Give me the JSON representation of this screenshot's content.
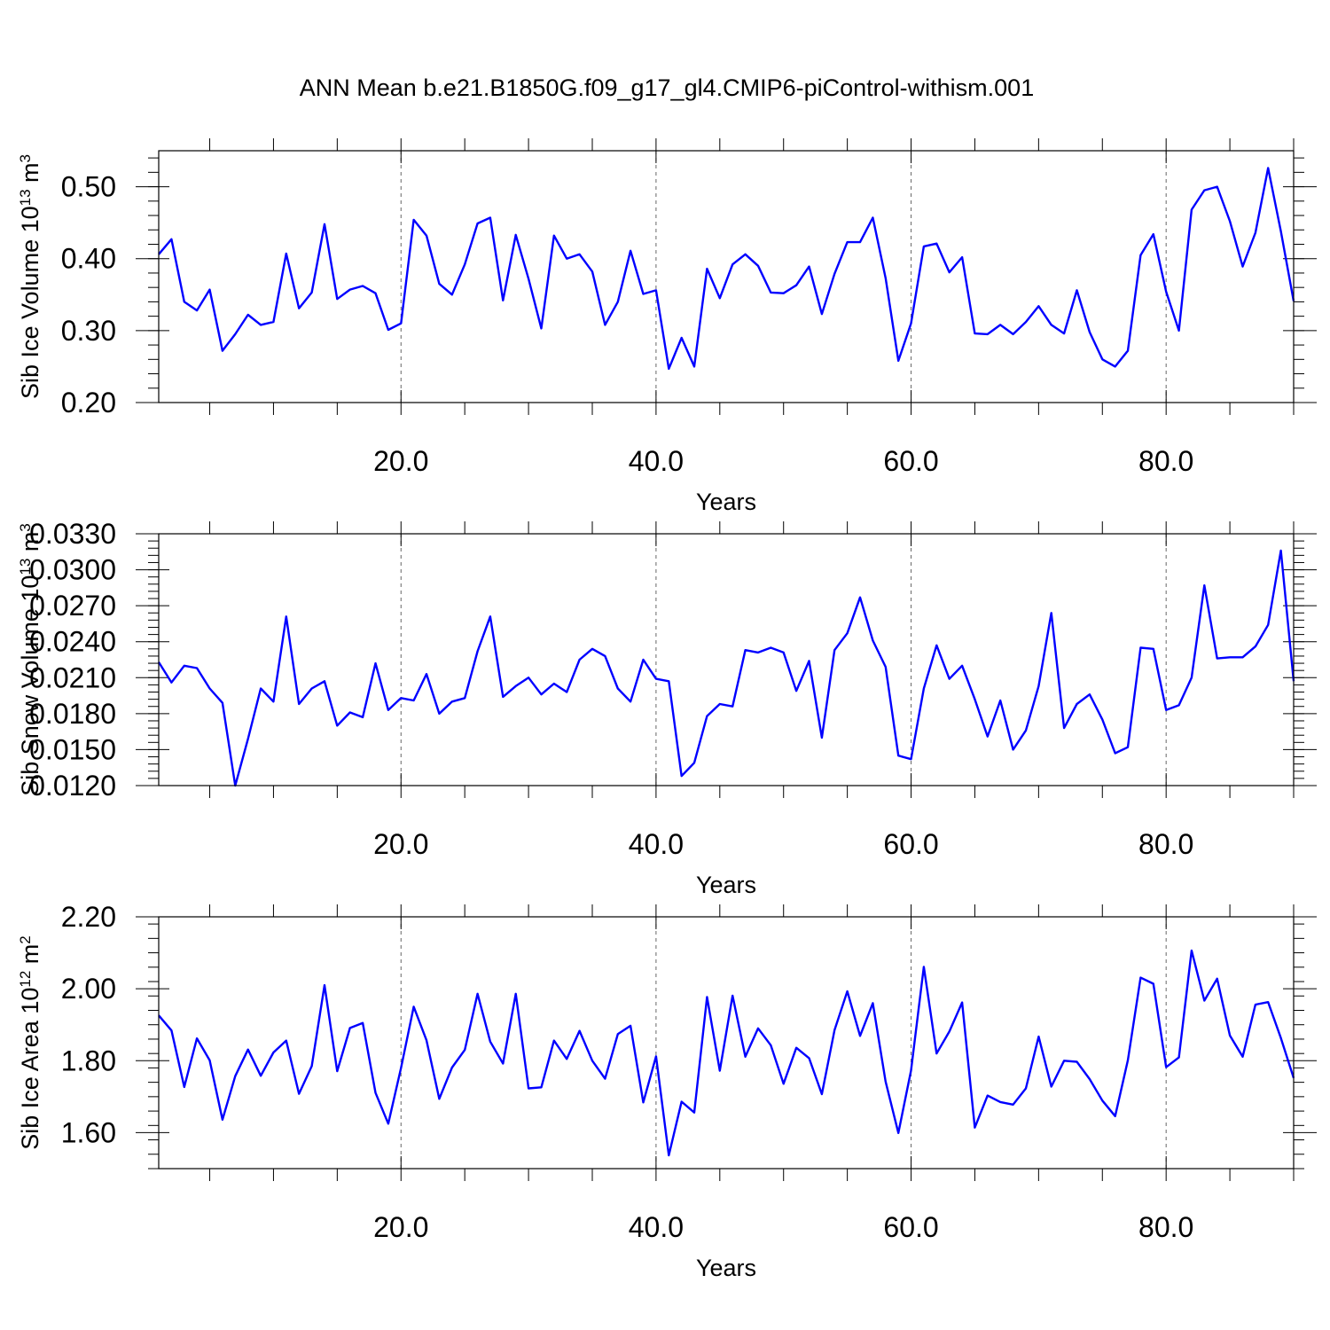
{
  "figure": {
    "title": "ANN Mean b.e21.B1850G.f09_g17_gl4.CMIP6-piControl-withism.001"
  },
  "chart_data": [
    {
      "type": "line",
      "title": "ANN Mean b.e21.B1850G.f09_g17_gl4.CMIP6-piControl-withism.001",
      "xlabel": "Years",
      "ylabel": {
        "text": "Sib Ice Volume 10",
        "exp": "13",
        "unit": " m",
        "unit_exp": "3"
      },
      "xlim": [
        1,
        90
      ],
      "ylim": [
        0.2,
        0.55
      ],
      "xticks": [
        20,
        40,
        60,
        80
      ],
      "xtick_labels": [
        "20.0",
        "40.0",
        "60.0",
        "80.0"
      ],
      "yticks": [
        0.2,
        0.3,
        0.4,
        0.5
      ],
      "ytick_labels": [
        "0.20",
        "0.30",
        "0.40",
        "0.50"
      ],
      "grid": "vertical dashed at x ticks",
      "line_color": "#0000ff",
      "x": [
        1,
        2,
        3,
        4,
        5,
        6,
        7,
        8,
        9,
        10,
        11,
        12,
        13,
        14,
        15,
        16,
        17,
        18,
        19,
        20,
        21,
        22,
        23,
        24,
        25,
        26,
        27,
        28,
        29,
        30,
        31,
        32,
        33,
        34,
        35,
        36,
        37,
        38,
        39,
        40,
        41,
        42,
        43,
        44,
        45,
        46,
        47,
        48,
        49,
        50,
        51,
        52,
        53,
        54,
        55,
        56,
        57,
        58,
        59,
        60,
        61,
        62,
        63,
        64,
        65,
        66,
        67,
        68,
        69,
        70,
        71,
        72,
        73,
        74,
        75,
        76,
        77,
        78,
        79,
        80,
        81,
        82,
        83,
        84,
        85,
        86,
        87,
        88,
        89,
        90
      ],
      "values": [
        0.406,
        0.427,
        0.34,
        0.328,
        0.357,
        0.272,
        0.295,
        0.322,
        0.308,
        0.312,
        0.407,
        0.331,
        0.353,
        0.448,
        0.344,
        0.357,
        0.362,
        0.352,
        0.301,
        0.31,
        0.454,
        0.432,
        0.365,
        0.35,
        0.392,
        0.449,
        0.457,
        0.342,
        0.433,
        0.372,
        0.303,
        0.432,
        0.4,
        0.406,
        0.382,
        0.308,
        0.34,
        0.411,
        0.351,
        0.356,
        0.247,
        0.29,
        0.25,
        0.386,
        0.345,
        0.392,
        0.406,
        0.39,
        0.353,
        0.352,
        0.363,
        0.389,
        0.323,
        0.379,
        0.423,
        0.423,
        0.457,
        0.373,
        0.258,
        0.31,
        0.417,
        0.421,
        0.381,
        0.402,
        0.296,
        0.295,
        0.308,
        0.295,
        0.312,
        0.334,
        0.308,
        0.296,
        0.356,
        0.298,
        0.26,
        0.25,
        0.272,
        0.405,
        0.434,
        0.354,
        0.3,
        0.468,
        0.495,
        0.5,
        0.452,
        0.389,
        0.436,
        0.526,
        0.438,
        0.341
      ]
    },
    {
      "type": "line",
      "xlabel": "Years",
      "ylabel": {
        "text": "Sib Snow Volume 10",
        "exp": "13",
        "unit": " m",
        "unit_exp": "3"
      },
      "xlim": [
        1,
        90
      ],
      "ylim": [
        0.012,
        0.033
      ],
      "xticks": [
        20,
        40,
        60,
        80
      ],
      "xtick_labels": [
        "20.0",
        "40.0",
        "60.0",
        "80.0"
      ],
      "yticks": [
        0.012,
        0.015,
        0.018,
        0.021,
        0.024,
        0.027,
        0.03,
        0.033
      ],
      "ytick_labels": [
        "0.0120",
        "0.0150",
        "0.0180",
        "0.0210",
        "0.0240",
        "0.0270",
        "0.0300",
        "0.0330"
      ],
      "grid": "vertical dashed at x ticks",
      "line_color": "#0000ff",
      "x": [
        1,
        2,
        3,
        4,
        5,
        6,
        7,
        8,
        9,
        10,
        11,
        12,
        13,
        14,
        15,
        16,
        17,
        18,
        19,
        20,
        21,
        22,
        23,
        24,
        25,
        26,
        27,
        28,
        29,
        30,
        31,
        32,
        33,
        34,
        35,
        36,
        37,
        38,
        39,
        40,
        41,
        42,
        43,
        44,
        45,
        46,
        47,
        48,
        49,
        50,
        51,
        52,
        53,
        54,
        55,
        56,
        57,
        58,
        59,
        60,
        61,
        62,
        63,
        64,
        65,
        66,
        67,
        68,
        69,
        70,
        71,
        72,
        73,
        74,
        75,
        76,
        77,
        78,
        79,
        80,
        81,
        82,
        83,
        84,
        85,
        86,
        87,
        88,
        89,
        90
      ],
      "values": [
        0.0223,
        0.0206,
        0.022,
        0.0218,
        0.0201,
        0.0189,
        0.012,
        0.0159,
        0.0201,
        0.019,
        0.0261,
        0.0188,
        0.0201,
        0.0207,
        0.017,
        0.0181,
        0.0177,
        0.0222,
        0.0183,
        0.0193,
        0.0191,
        0.0213,
        0.018,
        0.019,
        0.0193,
        0.0232,
        0.0261,
        0.0194,
        0.0203,
        0.021,
        0.0196,
        0.0205,
        0.0198,
        0.0225,
        0.0234,
        0.0228,
        0.0201,
        0.019,
        0.0225,
        0.0209,
        0.0207,
        0.0128,
        0.0139,
        0.0178,
        0.0188,
        0.0186,
        0.0233,
        0.0231,
        0.0235,
        0.0231,
        0.0199,
        0.0224,
        0.016,
        0.0233,
        0.0247,
        0.0277,
        0.0241,
        0.0219,
        0.0145,
        0.0142,
        0.0201,
        0.0237,
        0.0209,
        0.022,
        0.0192,
        0.0161,
        0.0191,
        0.015,
        0.0166,
        0.0203,
        0.0264,
        0.0168,
        0.0188,
        0.0196,
        0.0175,
        0.0147,
        0.0152,
        0.0235,
        0.0234,
        0.0183,
        0.0187,
        0.021,
        0.0287,
        0.0226,
        0.0227,
        0.0227,
        0.0236,
        0.0254,
        0.0316,
        0.0207
      ]
    },
    {
      "type": "line",
      "xlabel": "Years",
      "ylabel": {
        "text": "Sib Ice Area 10",
        "exp": "12",
        "unit": " m",
        "unit_exp": "2"
      },
      "xlim": [
        1,
        90
      ],
      "ylim": [
        1.5,
        2.2
      ],
      "xticks": [
        20,
        40,
        60,
        80
      ],
      "xtick_labels": [
        "20.0",
        "40.0",
        "60.0",
        "80.0"
      ],
      "yticks": [
        1.6,
        1.8,
        2.0,
        2.2
      ],
      "ytick_labels": [
        "1.60",
        "1.80",
        "2.00",
        "2.20"
      ],
      "grid": "vertical dashed at x ticks",
      "line_color": "#0000ff",
      "x": [
        1,
        2,
        3,
        4,
        5,
        6,
        7,
        8,
        9,
        10,
        11,
        12,
        13,
        14,
        15,
        16,
        17,
        18,
        19,
        20,
        21,
        22,
        23,
        24,
        25,
        26,
        27,
        28,
        29,
        30,
        31,
        32,
        33,
        34,
        35,
        36,
        37,
        38,
        39,
        40,
        41,
        42,
        43,
        44,
        45,
        46,
        47,
        48,
        49,
        50,
        51,
        52,
        53,
        54,
        55,
        56,
        57,
        58,
        59,
        60,
        61,
        62,
        63,
        64,
        65,
        66,
        67,
        68,
        69,
        70,
        71,
        72,
        73,
        74,
        75,
        76,
        77,
        78,
        79,
        80,
        81,
        82,
        83,
        84,
        85,
        86,
        87,
        88,
        89,
        90
      ],
      "values": [
        1.926,
        1.884,
        1.727,
        1.862,
        1.801,
        1.636,
        1.757,
        1.831,
        1.758,
        1.823,
        1.856,
        1.708,
        1.785,
        2.01,
        1.771,
        1.891,
        1.905,
        1.711,
        1.625,
        1.78,
        1.95,
        1.857,
        1.694,
        1.781,
        1.83,
        1.986,
        1.853,
        1.792,
        1.986,
        1.723,
        1.726,
        1.856,
        1.805,
        1.883,
        1.8,
        1.75,
        1.874,
        1.897,
        1.684,
        1.812,
        1.537,
        1.686,
        1.656,
        1.977,
        1.772,
        1.981,
        1.811,
        1.89,
        1.843,
        1.736,
        1.836,
        1.807,
        1.707,
        1.885,
        1.993,
        1.869,
        1.96,
        1.742,
        1.599,
        1.773,
        2.061,
        1.82,
        1.881,
        1.962,
        1.614,
        1.703,
        1.685,
        1.678,
        1.723,
        1.867,
        1.728,
        1.8,
        1.797,
        1.749,
        1.689,
        1.646,
        1.801,
        2.031,
        2.014,
        1.782,
        1.809,
        2.106,
        1.967,
        2.028,
        1.87,
        1.811,
        1.956,
        1.963,
        1.863,
        1.752
      ]
    }
  ]
}
